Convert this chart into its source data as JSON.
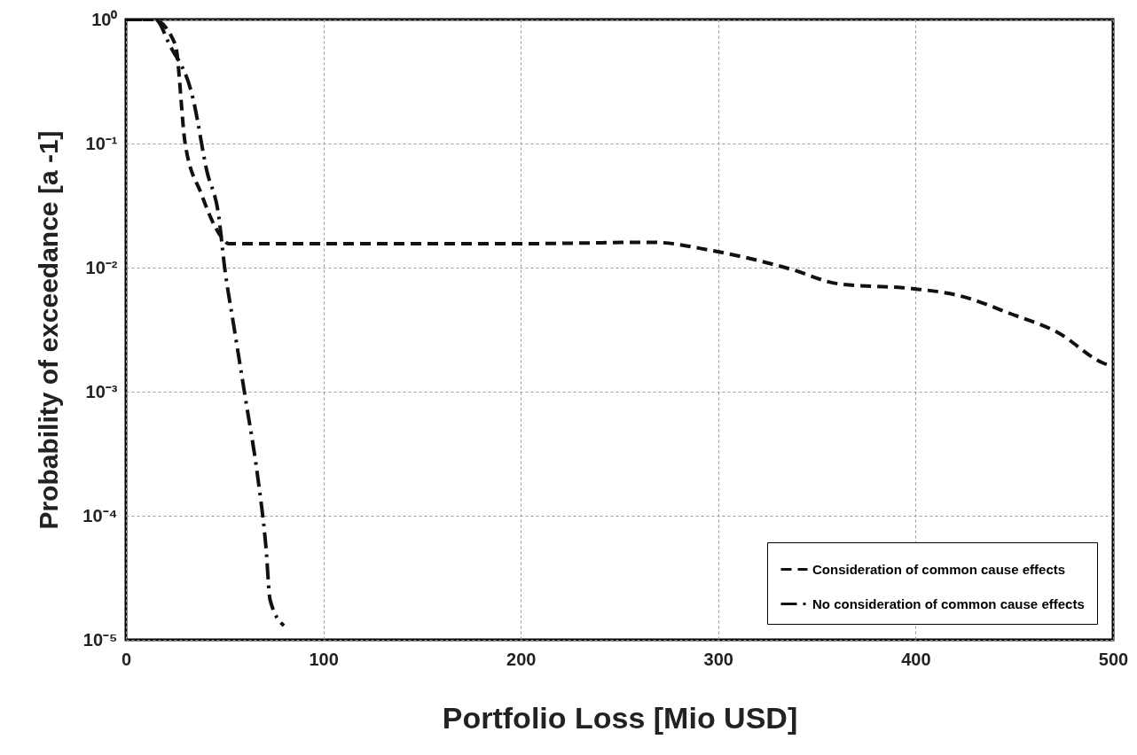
{
  "chart_data": {
    "type": "line",
    "xlabel": "Portfolio Loss [Mio USD]",
    "ylabel": "Probability of exceedance [a -1]",
    "log": "y",
    "grid": true,
    "legend": "bottom right",
    "marker": "none",
    "xlim": [
      0,
      500
    ],
    "xticks": [
      0,
      100,
      200,
      300,
      400,
      500
    ],
    "ylim": [
      1e-05,
      1
    ],
    "yticks": [
      {
        "value": 1,
        "label": "10⁰"
      },
      {
        "value": 0.1,
        "label": "10⁻¹"
      },
      {
        "value": 0.01,
        "label": "10⁻²"
      },
      {
        "value": 0.001,
        "label": "10⁻³"
      },
      {
        "value": 0.0001,
        "label": "10⁻⁴"
      },
      {
        "value": 1e-05,
        "label": "10⁻⁵"
      }
    ],
    "series": [
      {
        "name": "Consideration of common cause effects",
        "color": "#111111",
        "line_style": "dashed",
        "x": [
          0,
          10,
          14,
          25,
          30,
          38,
          48,
          52,
          100,
          200,
          267,
          297,
          337,
          361,
          397,
          421,
          449,
          472,
          495,
          500
        ],
        "values": [
          1,
          1,
          1,
          0.63,
          0.1,
          0.04,
          0.018,
          0.0156,
          0.0156,
          0.0156,
          0.016,
          0.0137,
          0.0097,
          0.0074,
          0.0068,
          0.006,
          0.0042,
          0.003,
          0.0017,
          0.0016
        ]
      },
      {
        "name": "No consideration of common cause effects",
        "color": "#111111",
        "line_style": "dashdot",
        "x": [
          0,
          15,
          22,
          34,
          41,
          47,
          50,
          54.5,
          60.6,
          66.5,
          71,
          73,
          80
        ],
        "values": [
          1,
          1,
          0.63,
          0.23,
          0.06,
          0.026,
          0.01,
          0.0035,
          0.00087,
          0.00022,
          5.4e-05,
          2.1e-05,
          1.3e-05
        ]
      }
    ]
  }
}
